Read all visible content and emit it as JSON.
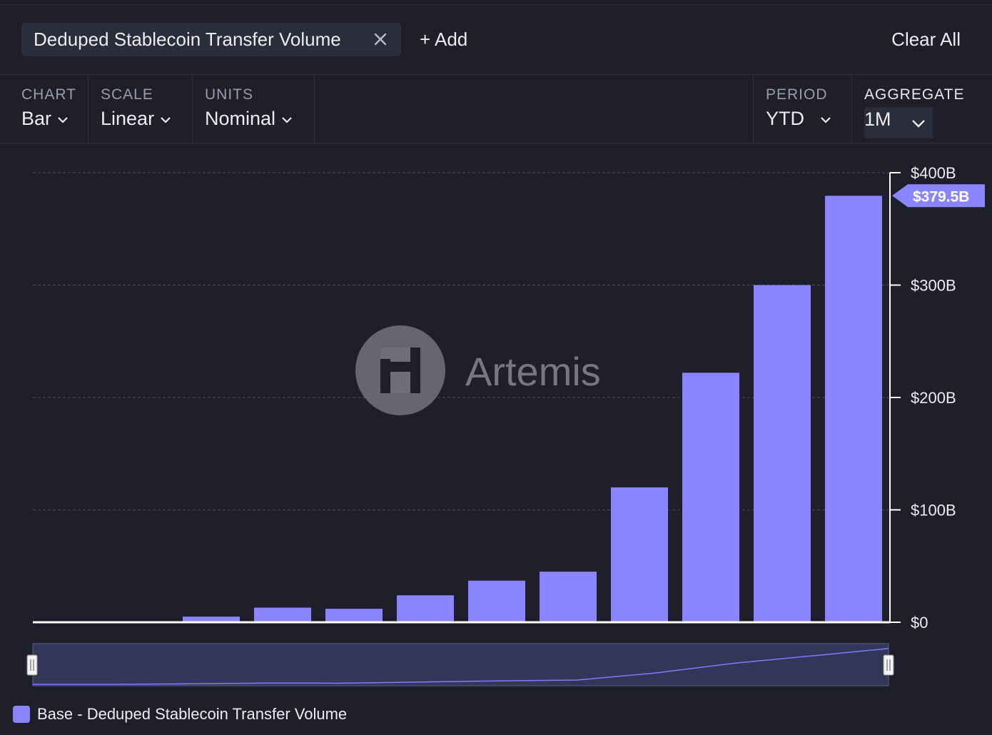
{
  "header": {
    "metric_chip_label": "Deduped Stablecoin Transfer Volume",
    "add_label": "+ Add",
    "clear_label": "Clear All"
  },
  "controls": {
    "chart": {
      "label": "CHART",
      "value": "Bar"
    },
    "scale": {
      "label": "SCALE",
      "value": "Linear"
    },
    "units": {
      "label": "UNITS",
      "value": "Nominal"
    },
    "period": {
      "label": "PERIOD",
      "value": "YTD"
    },
    "aggregate": {
      "label": "AGGREGATE",
      "value": "1M"
    }
  },
  "watermark": {
    "text": "Artemis"
  },
  "colors": {
    "bar": "#8a85ff",
    "background": "#1e1f2a",
    "navigator": "#323659",
    "grid": "#4a4c5a"
  },
  "chart_data": {
    "type": "bar",
    "title": "",
    "xlabel": "",
    "ylabel": "",
    "categories": [
      "",
      "",
      "",
      "",
      "",
      "",
      "",
      "",
      "",
      "",
      "",
      ""
    ],
    "series": [
      {
        "name": "Base - Deduped Stablecoin Transfer Volume",
        "values": [
          0,
          0,
          5,
          13,
          12,
          24,
          37,
          45,
          120,
          222,
          300,
          379.5
        ]
      }
    ],
    "ylim": [
      0,
      400
    ],
    "yticks": [
      0,
      100,
      200,
      300,
      400
    ],
    "ytick_labels": [
      "$0",
      "$100B",
      "$200B",
      "$300B",
      "$400B"
    ],
    "last_value_label": "$379.5B",
    "grid": true,
    "y_axis_position": "right",
    "legend_position": "bottom-left"
  },
  "legend": {
    "label": "Base - Deduped Stablecoin Transfer Volume"
  }
}
